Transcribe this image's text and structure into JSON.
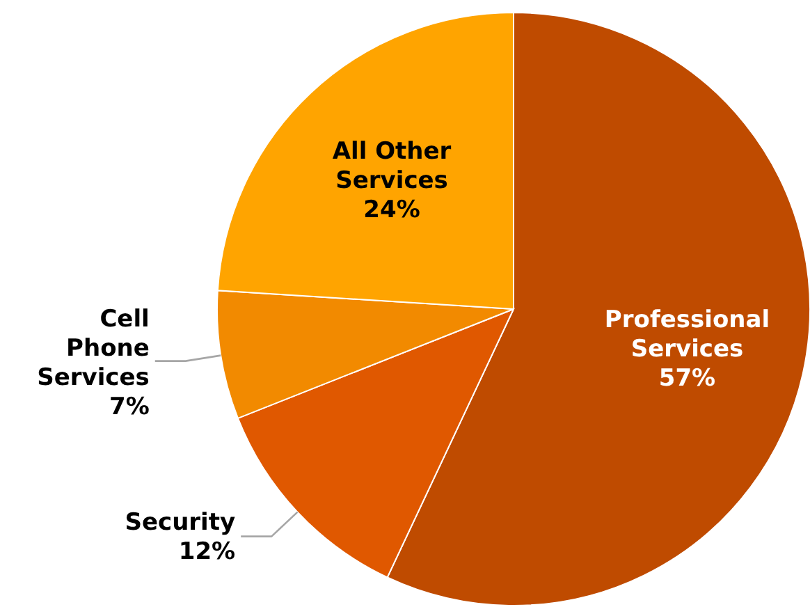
{
  "chart_data": {
    "type": "pie",
    "categories": [
      "Professional Services",
      "Security",
      "Cell Phone Services",
      "All Other Services"
    ],
    "values": [
      57,
      12,
      7,
      24
    ],
    "value_labels": [
      "57%",
      "12%",
      "7%",
      "24%"
    ],
    "colors": [
      "#bf4b00",
      "#e05800",
      "#f28a00",
      "#ffa400"
    ]
  }
}
